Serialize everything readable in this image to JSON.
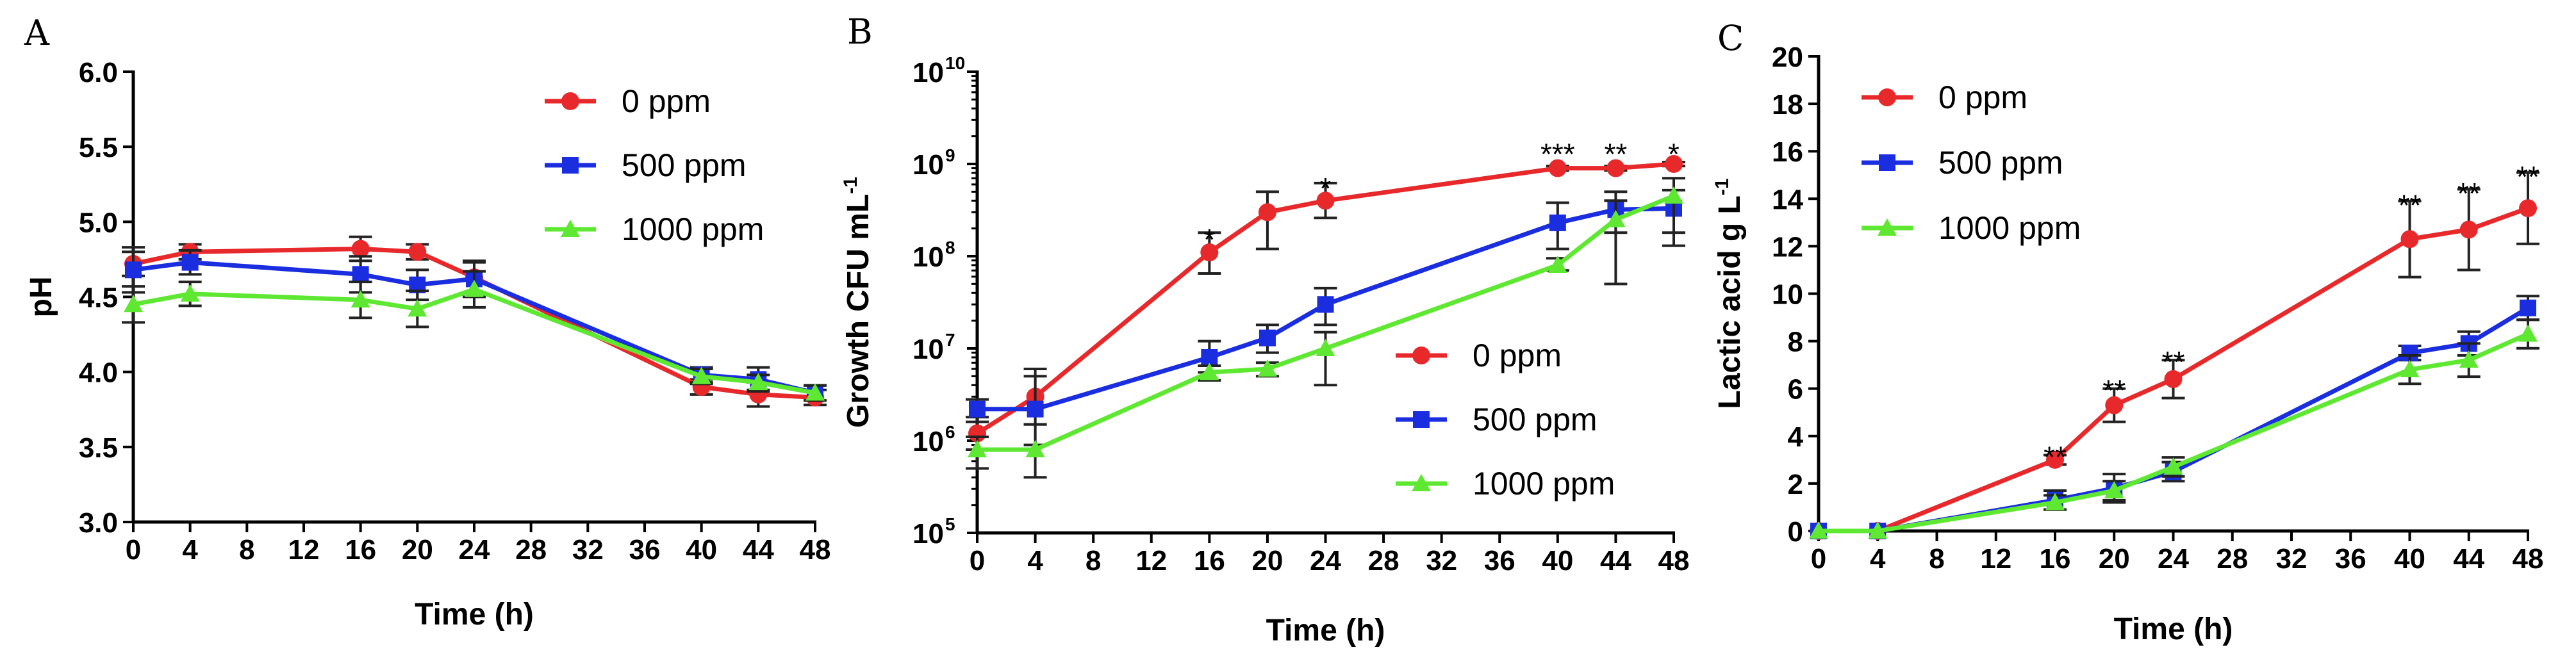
{
  "chart_data": [
    {
      "panel": "A",
      "type": "line",
      "title": "",
      "xlabel": "Time (h)",
      "ylabel": "pH",
      "xlim": [
        0,
        48
      ],
      "ylim": [
        3.0,
        6.0
      ],
      "xticks": [
        0,
        4,
        8,
        12,
        16,
        20,
        24,
        28,
        32,
        36,
        40,
        44,
        48
      ],
      "yticks": [
        3.0,
        3.5,
        4.0,
        4.5,
        5.0,
        5.5,
        6.0
      ],
      "ytick_labels": [
        "3.0",
        "3.5",
        "4.0",
        "4.5",
        "5.0",
        "5.5",
        "6.0"
      ],
      "legend_position": "top-right",
      "series": [
        {
          "name": "0 ppm",
          "color": "#e8292b",
          "marker": "circle",
          "x": [
            0,
            4,
            16,
            20,
            24,
            40,
            44,
            48
          ],
          "values": [
            4.72,
            4.8,
            4.82,
            4.8,
            4.63,
            3.9,
            3.85,
            3.83
          ],
          "errors": [
            0.08,
            0.05,
            0.08,
            0.05,
            0.1,
            0.05,
            0.08,
            0.05
          ]
        },
        {
          "name": "500 ppm",
          "color": "#1a2ee0",
          "marker": "square",
          "x": [
            0,
            4,
            16,
            20,
            24,
            40,
            44,
            48
          ],
          "values": [
            4.68,
            4.73,
            4.65,
            4.58,
            4.62,
            3.98,
            3.95,
            3.86
          ],
          "errors": [
            0.15,
            0.08,
            0.12,
            0.1,
            0.12,
            0.05,
            0.08,
            0.05
          ]
        },
        {
          "name": "1000 ppm",
          "color": "#5ee831",
          "marker": "triangle",
          "x": [
            0,
            4,
            16,
            20,
            24,
            40,
            44,
            48
          ],
          "values": [
            4.45,
            4.52,
            4.48,
            4.42,
            4.55,
            3.97,
            3.93,
            3.86
          ],
          "errors": [
            0.12,
            0.08,
            0.12,
            0.12,
            0.12,
            0.05,
            0.05,
            0.05
          ]
        }
      ]
    },
    {
      "panel": "B",
      "type": "line",
      "title": "",
      "xlabel": "Time (h)",
      "ylabel": "Growth CFU mL",
      "ylabel_exp": "-1",
      "yscale": "log",
      "xlim": [
        0,
        48
      ],
      "ylim": [
        100000,
        10000000000
      ],
      "xticks": [
        0,
        4,
        8,
        12,
        16,
        20,
        24,
        28,
        32,
        36,
        40,
        44,
        48
      ],
      "yticks": [
        100000,
        1000000,
        10000000,
        100000000,
        1000000000,
        10000000000
      ],
      "ytick_base": "10",
      "ytick_exps": [
        "5",
        "6",
        "7",
        "8",
        "9",
        "10"
      ],
      "legend_position": "bottom-right",
      "series": [
        {
          "name": "0 ppm",
          "color": "#e8292b",
          "marker": "circle",
          "x": [
            0,
            4,
            16,
            20,
            24,
            40,
            44,
            48
          ],
          "values": [
            1200000,
            3000000,
            110000000,
            300000000,
            400000000,
            900000000,
            900000000,
            1000000000
          ],
          "err_low": [
            800000,
            1500000,
            65000000,
            120000000,
            260000000,
            850000000,
            850000000,
            950000000
          ],
          "err_high": [
            1800000,
            6000000,
            180000000,
            500000000,
            620000000,
            950000000,
            950000000,
            1050000000
          ]
        },
        {
          "name": "500 ppm",
          "color": "#1a2ee0",
          "marker": "square",
          "x": [
            0,
            4,
            16,
            20,
            24,
            40,
            44,
            48
          ],
          "values": [
            2200000,
            2200000,
            8000000,
            13000000,
            30000000,
            230000000,
            320000000,
            330000000
          ],
          "err_low": [
            1600000,
            900000,
            5500000,
            9000000,
            18000000,
            120000000,
            180000000,
            180000000
          ],
          "err_high": [
            2800000,
            5000000,
            12000000,
            18000000,
            45000000,
            380000000,
            500000000,
            520000000
          ]
        },
        {
          "name": "1000 ppm",
          "color": "#5ee831",
          "marker": "triangle",
          "x": [
            0,
            4,
            16,
            20,
            24,
            40,
            44,
            48
          ],
          "values": [
            800000,
            800000,
            5500000,
            6000000,
            10000000,
            80000000,
            250000000,
            450000000
          ],
          "err_low": [
            500000,
            400000,
            4500000,
            5000000,
            4000000,
            70000000,
            50000000,
            130000000
          ],
          "err_high": [
            1100000,
            1500000,
            6500000,
            7000000,
            15000000,
            95000000,
            400000000,
            700000000
          ]
        }
      ],
      "annotations": [
        {
          "x": 16,
          "y": 190000000,
          "text": "*"
        },
        {
          "x": 24,
          "y": 680000000,
          "text": "*"
        },
        {
          "x": 40,
          "y": 1600000000,
          "text": "***"
        },
        {
          "x": 44,
          "y": 1600000000,
          "text": "**"
        },
        {
          "x": 48,
          "y": 1600000000,
          "text": "*"
        }
      ]
    },
    {
      "panel": "C",
      "type": "line",
      "title": "",
      "xlabel": "Time (h)",
      "ylabel": "Lactic acid g L",
      "ylabel_exp": "-1",
      "xlim": [
        0,
        48
      ],
      "ylim": [
        0,
        20
      ],
      "xticks": [
        0,
        4,
        8,
        12,
        16,
        20,
        24,
        28,
        32,
        36,
        40,
        44,
        48
      ],
      "yticks": [
        0,
        2,
        4,
        6,
        8,
        10,
        12,
        14,
        16,
        18,
        20
      ],
      "ytick_labels": [
        "0",
        "2",
        "4",
        "6",
        "8",
        "10",
        "12",
        "14",
        "16",
        "18",
        "20"
      ],
      "legend_position": "top-left",
      "series": [
        {
          "name": "0 ppm",
          "color": "#e8292b",
          "marker": "circle",
          "x": [
            0,
            4,
            16,
            20,
            24,
            40,
            44,
            48
          ],
          "values": [
            0,
            0,
            3.0,
            5.3,
            6.4,
            12.3,
            12.7,
            13.6
          ],
          "errors": [
            0,
            0,
            0.2,
            0.7,
            0.8,
            1.6,
            1.7,
            1.5
          ]
        },
        {
          "name": "500 ppm",
          "color": "#1a2ee0",
          "marker": "square",
          "x": [
            0,
            4,
            16,
            20,
            24,
            40,
            44,
            48
          ],
          "values": [
            0,
            0,
            1.3,
            1.8,
            2.5,
            7.5,
            7.9,
            9.4
          ],
          "errors": [
            0,
            0,
            0.4,
            0.6,
            0.4,
            0.3,
            0.5,
            0.5
          ]
        },
        {
          "name": "1000 ppm",
          "color": "#5ee831",
          "marker": "triangle",
          "x": [
            0,
            4,
            16,
            20,
            24,
            40,
            44,
            48
          ],
          "values": [
            0,
            0,
            1.2,
            1.7,
            2.7,
            6.8,
            7.2,
            8.3
          ],
          "errors": [
            0,
            0,
            0.3,
            0.4,
            0.4,
            0.6,
            0.7,
            0.6
          ]
        }
      ],
      "annotations": [
        {
          "x": 16,
          "y": 3.5,
          "text": "**"
        },
        {
          "x": 20,
          "y": 6.3,
          "text": "**"
        },
        {
          "x": 24,
          "y": 7.5,
          "text": "**"
        },
        {
          "x": 40,
          "y": 14.1,
          "text": "**"
        },
        {
          "x": 44,
          "y": 14.6,
          "text": "**"
        },
        {
          "x": 48,
          "y": 15.3,
          "text": "**"
        }
      ]
    }
  ]
}
